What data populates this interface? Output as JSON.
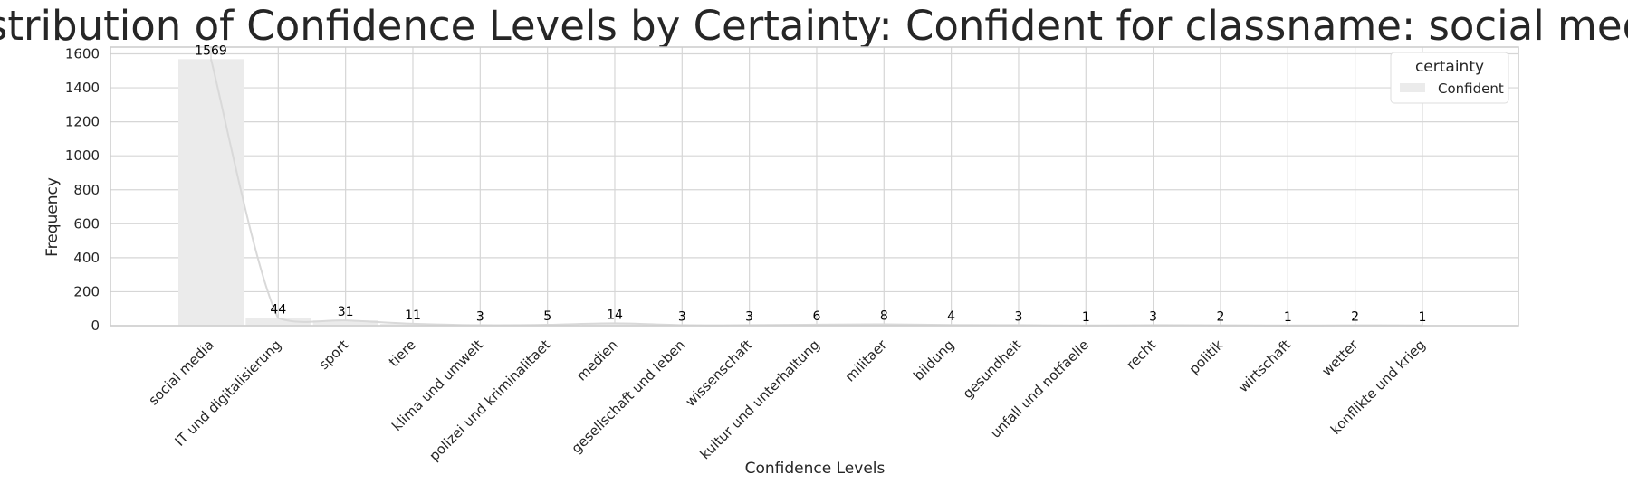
{
  "chart_data": {
    "type": "bar",
    "title": "Distribution of Confidence Levels by Certainty: Confident for classname: social media",
    "xlabel": "Confidence Levels",
    "ylabel": "Frequency",
    "ylim": [
      0,
      1640
    ],
    "yticks": [
      0,
      200,
      400,
      600,
      800,
      1000,
      1200,
      1400,
      1600
    ],
    "grid": true,
    "legend": {
      "title": "certainty",
      "placement": "top-right",
      "entries": [
        "Confident"
      ]
    },
    "categories": [
      "social media",
      "IT und digitalisierung",
      "sport",
      "tiere",
      "klima und umwelt",
      "polizei und kriminalitaet",
      "medien",
      "gesellschaft und leben",
      "wissenschaft",
      "kultur und unterhaltung",
      "militaer",
      "bildung",
      "gesundheit",
      "unfall und notfaelle",
      "recht",
      "politik",
      "wirtschaft",
      "wetter",
      "konflikte und krieg"
    ],
    "series": [
      {
        "name": "Confident",
        "color": "#ebebeb",
        "kde_color": "#d9d9d9",
        "values": [
          1569,
          44,
          31,
          11,
          3,
          5,
          14,
          3,
          3,
          6,
          8,
          4,
          3,
          1,
          3,
          2,
          1,
          2,
          1
        ]
      }
    ]
  }
}
